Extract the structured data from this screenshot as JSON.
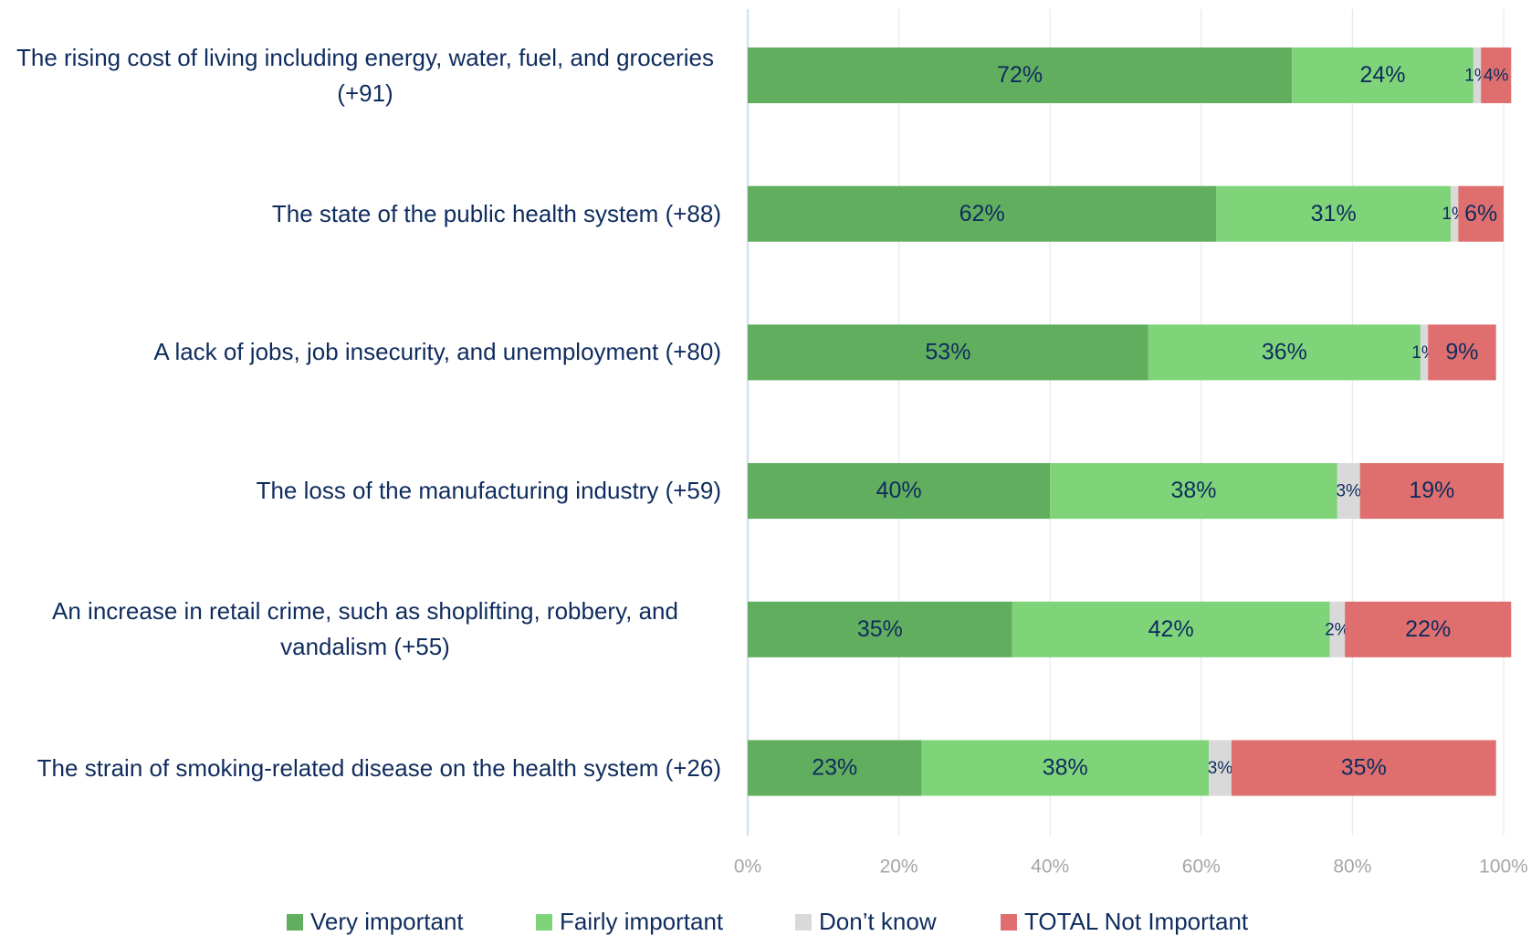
{
  "chart_data": {
    "type": "stacked-bar-horizontal",
    "categories": [
      "The rising cost of living including energy, water, fuel, and groceries (+91)",
      "The state of the public health system (+88)",
      "A lack of jobs, job insecurity, and unemployment (+80)",
      "The loss of the manufacturing industry (+59)",
      "An increase in retail crime, such as shoplifting, robbery, and vandalism (+55)",
      "The strain of smoking-related disease on the health system (+26)"
    ],
    "series": [
      {
        "name": "Very important",
        "color": "#62ae5f",
        "values": [
          72,
          62,
          53,
          40,
          35,
          23
        ],
        "value_labels": [
          "72%",
          "62%",
          "53%",
          "40%",
          "35%",
          "23%"
        ]
      },
      {
        "name": "Fairly important",
        "color": "#7fd47a",
        "values": [
          24,
          31,
          36,
          38,
          42,
          38
        ],
        "value_labels": [
          "24%",
          "31%",
          "36%",
          "38%",
          "42%",
          "38%"
        ]
      },
      {
        "name": "Don’t know",
        "color": "#d9d9d9",
        "values": [
          1,
          1,
          1,
          3,
          2,
          3
        ],
        "value_labels": [
          "1%",
          "1%",
          "1%",
          "3%",
          "2%",
          "3%"
        ]
      },
      {
        "name": "TOTAL Not Important",
        "color": "#df6f6e",
        "values": [
          4,
          6,
          9,
          19,
          22,
          35
        ],
        "value_labels": [
          "4%",
          "6%",
          "9%",
          "19%",
          "22%",
          "35%"
        ]
      }
    ],
    "xlim": [
      0,
      100
    ],
    "xticks": [
      {
        "value": 0,
        "label": "0%"
      },
      {
        "value": 20,
        "label": "20%"
      },
      {
        "value": 40,
        "label": "40%"
      },
      {
        "value": 60,
        "label": "60%"
      },
      {
        "value": 80,
        "label": "80%"
      },
      {
        "value": 100,
        "label": "100%"
      }
    ],
    "grid": true,
    "legend": "bottom"
  }
}
